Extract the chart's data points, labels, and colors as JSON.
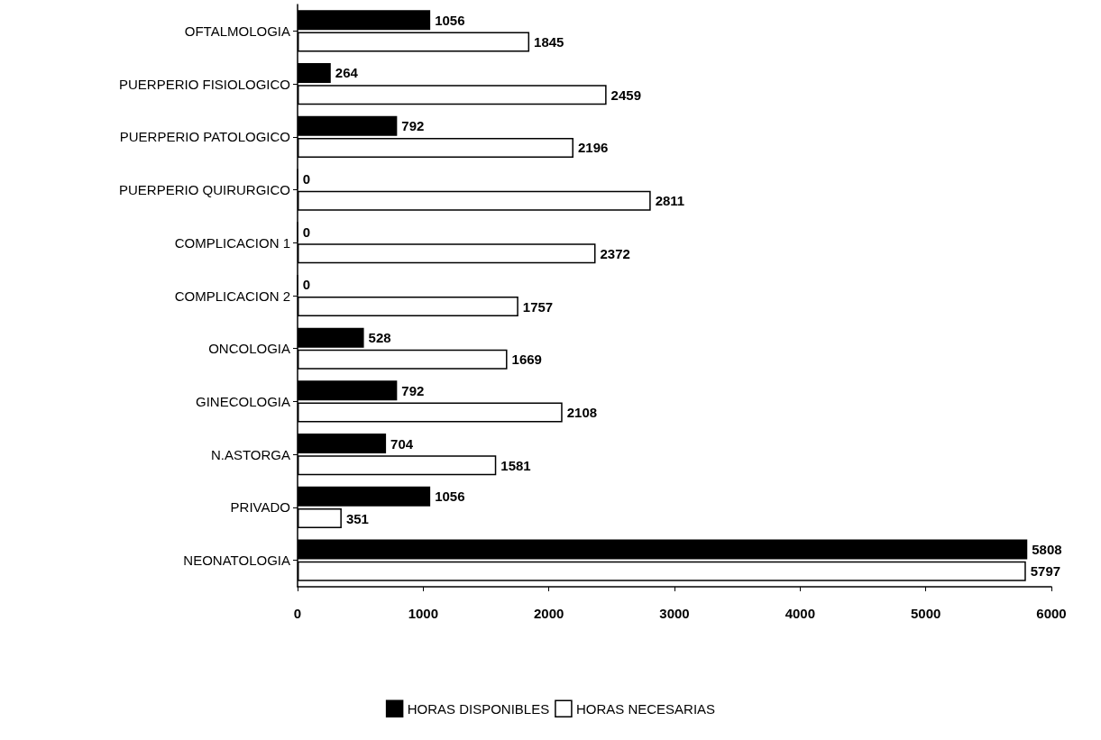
{
  "chart_data": {
    "type": "bar",
    "orientation": "horizontal",
    "categories": [
      "OFTALMOLOGIA",
      "PUERPERIO FISIOLOGICO",
      "PUERPERIO PATOLOGICO",
      "PUERPERIO QUIRURGICO",
      "COMPLICACION 1",
      "COMPLICACION 2",
      "ONCOLOGIA",
      "GINECOLOGIA",
      "N.ASTORGA",
      "PRIVADO",
      "NEONATOLOGIA"
    ],
    "series": [
      {
        "name": "HORAS DISPONIBLES",
        "color": "#000000",
        "values": [
          1056,
          264,
          792,
          0,
          0,
          0,
          528,
          792,
          704,
          1056,
          5808
        ]
      },
      {
        "name": "HORAS NECESARIAS",
        "color": "#ffffff",
        "values": [
          1845,
          2459,
          2196,
          2811,
          2372,
          1757,
          1669,
          2108,
          1581,
          351,
          5797
        ]
      }
    ],
    "xlim": [
      0,
      6000
    ],
    "xticks": [
      0,
      1000,
      2000,
      3000,
      4000,
      5000,
      6000
    ],
    "data_labels": true,
    "grid": false,
    "legend": "bottom"
  }
}
